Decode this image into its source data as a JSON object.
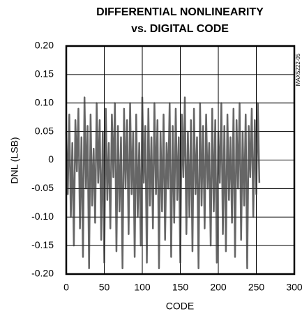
{
  "chart_data": {
    "type": "line",
    "title": "DIFFERENTIAL NONLINEARITY",
    "subtitle": "vs. DIGITAL CODE",
    "annotation": "MAX5222-05",
    "x_label": "CODE",
    "y_label": "DNL (LSB)",
    "xlim": [
      0,
      300
    ],
    "xticks": [
      0,
      50,
      100,
      150,
      200,
      250,
      300
    ],
    "ylim": [
      -0.2,
      0.2
    ],
    "yticks": [
      {
        "value": -0.2,
        "label": "-0.20"
      },
      -0.15,
      {
        "value": -0.1,
        "label": "-0.10"
      },
      -0.05,
      0,
      0.05,
      {
        "value": 0.1,
        "label": "0.10"
      },
      0.15,
      {
        "value": 0.2,
        "label": "0.20"
      }
    ],
    "grid": true,
    "series": [
      {
        "color": "#333333",
        "x": [
          0,
          2,
          4,
          6,
          8,
          10,
          12,
          14,
          16,
          18,
          20,
          22,
          24,
          26,
          28,
          30,
          32,
          34,
          36,
          38,
          40,
          42,
          44,
          46,
          48,
          50,
          52,
          54,
          56,
          58,
          60,
          62,
          64,
          66,
          68,
          70,
          72,
          74,
          76,
          78,
          80,
          82,
          84,
          86,
          88,
          90,
          92,
          94,
          96,
          98,
          100,
          102,
          104,
          106,
          108,
          110,
          112,
          114,
          116,
          118,
          120,
          122,
          124,
          126,
          128,
          130,
          132,
          134,
          136,
          138,
          140,
          142,
          144,
          146,
          148,
          150,
          152,
          154,
          156,
          158,
          160,
          162,
          164,
          166,
          168,
          170,
          172,
          174,
          176,
          178,
          180,
          182,
          184,
          186,
          188,
          190,
          192,
          194,
          196,
          198,
          200,
          202,
          204,
          206,
          208,
          210,
          212,
          214,
          216,
          218,
          220,
          222,
          224,
          226,
          228,
          230,
          232,
          234,
          236,
          238,
          240,
          242,
          244,
          246,
          248,
          250,
          252,
          254
        ],
        "values": [
          0.05,
          -0.06,
          0.08,
          -0.1,
          0.03,
          -0.15,
          0.07,
          -0.02,
          0.09,
          -0.12,
          0.04,
          -0.17,
          0.11,
          -0.05,
          0.06,
          -0.19,
          0.08,
          -0.08,
          0.02,
          -0.11,
          0.1,
          -0.04,
          0.07,
          -0.14,
          0.05,
          -0.18,
          0.09,
          -0.07,
          0.03,
          -0.12,
          0.08,
          -0.03,
          0.1,
          -0.16,
          0.06,
          -0.09,
          0.04,
          -0.19,
          0.09,
          -0.05,
          0.07,
          -0.13,
          0.1,
          -0.06,
          0.05,
          -0.17,
          0.08,
          -0.1,
          0.03,
          -0.15,
          0.11,
          -0.04,
          0.06,
          -0.18,
          0.09,
          -0.08,
          0.04,
          -0.12,
          0.1,
          -0.06,
          0.07,
          -0.19,
          0.05,
          -0.09,
          0.08,
          -0.14,
          0.03,
          -0.05,
          0.1,
          -0.17,
          0.06,
          -0.11,
          0.09,
          -0.07,
          0.04,
          -0.18,
          0.08,
          -0.03,
          0.11,
          -0.13,
          0.05,
          -0.1,
          0.07,
          -0.16,
          0.09,
          -0.06,
          0.04,
          -0.19,
          0.1,
          -0.08,
          0.06,
          -0.12,
          0.08,
          -0.05,
          0.03,
          -0.15,
          0.09,
          -0.09,
          0.07,
          -0.18,
          0.05,
          -0.04,
          0.1,
          -0.13,
          0.06,
          -0.16,
          0.08,
          -0.07,
          0.04,
          -0.11,
          0.09,
          -0.17,
          0.07,
          -0.05,
          0.1,
          -0.14,
          0.05,
          -0.08,
          0.08,
          -0.19,
          0.06,
          -0.03,
          0.09,
          -0.1,
          0.07,
          -0.06,
          0.1,
          -0.04
        ]
      }
    ]
  }
}
